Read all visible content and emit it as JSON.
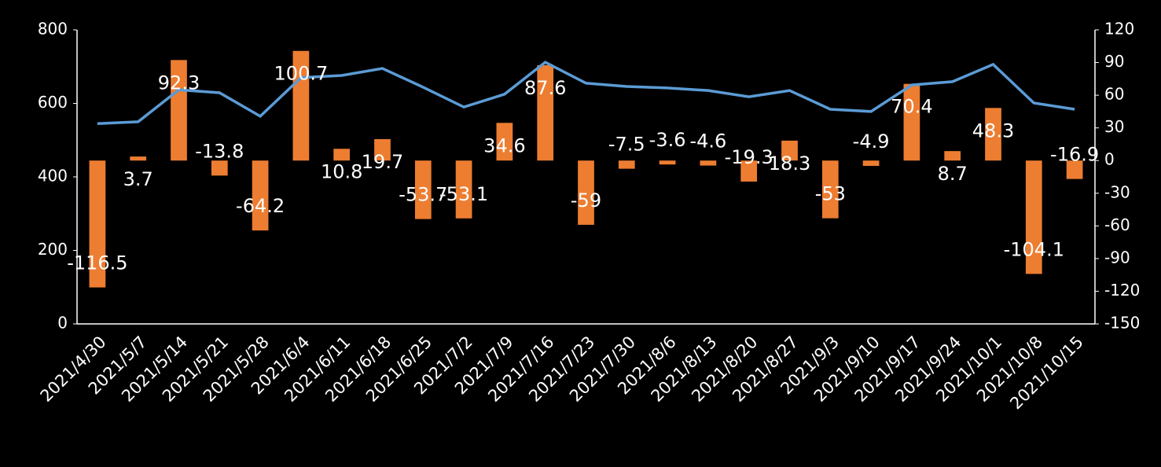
{
  "chart_data": {
    "type": "bar-line",
    "categories": [
      "2021/4/30",
      "2021/5/7",
      "2021/5/14",
      "2021/5/21",
      "2021/5/28",
      "2021/6/4",
      "2021/6/11",
      "2021/6/18",
      "2021/6/25",
      "2021/7/2",
      "2021/7/9",
      "2021/7/16",
      "2021/7/23",
      "2021/7/30",
      "2021/8/6",
      "2021/8/13",
      "2021/8/20",
      "2021/8/27",
      "2021/9/3",
      "2021/9/10",
      "2021/9/17",
      "2021/9/24",
      "2021/10/1",
      "2021/10/8",
      "2021/10/15"
    ],
    "series": [
      {
        "type": "line",
        "axis": "y",
        "color": "#5b9bd5",
        "values": [
          545,
          550,
          637,
          629,
          565,
          670,
          676,
          695,
          644,
          590,
          625,
          712,
          655,
          646,
          642,
          635,
          618,
          635,
          584,
          578,
          650,
          659,
          706,
          601,
          584
        ]
      },
      {
        "type": "bar",
        "axis": "y2",
        "color": "#ed7d31",
        "values": [
          -116.5,
          3.7,
          92.3,
          -13.8,
          -64.2,
          100.7,
          10.8,
          19.7,
          -53.7,
          -53.1,
          34.6,
          87.6,
          -59,
          -7.5,
          -3.6,
          -4.6,
          -19.3,
          18.3,
          -53,
          -4.9,
          70.4,
          8.7,
          48.3,
          -104.1,
          -16.9
        ]
      }
    ],
    "ylim": [
      0,
      800
    ],
    "yticks": [
      0,
      200,
      400,
      600,
      800
    ],
    "y2lim": [
      -150,
      120
    ],
    "y2ticks": [
      -150,
      -120,
      -90,
      -60,
      -30,
      0,
      30,
      60,
      90,
      120
    ]
  }
}
